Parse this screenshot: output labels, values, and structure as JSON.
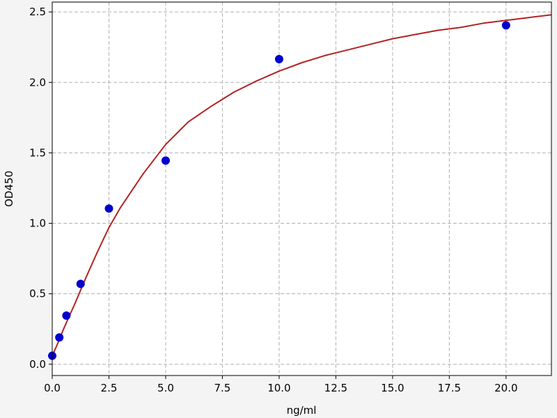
{
  "chart_data": {
    "type": "scatter",
    "xlabel": "ng/ml",
    "ylabel": "OD450",
    "xlim": [
      0,
      22
    ],
    "ylim": [
      -0.08,
      2.57
    ],
    "grid": true,
    "x_ticks": [
      0.0,
      2.5,
      5.0,
      7.5,
      10.0,
      12.5,
      15.0,
      17.5,
      20.0
    ],
    "x_tick_labels": [
      "0.0",
      "2.5",
      "5.0",
      "7.5",
      "10.0",
      "12.5",
      "15.0",
      "17.5",
      "20.0"
    ],
    "y_ticks": [
      0.0,
      0.5,
      1.0,
      1.5,
      2.0,
      2.5
    ],
    "y_tick_labels": [
      "0.0",
      "0.5",
      "1.0",
      "1.5",
      "2.0",
      "2.5"
    ],
    "series": [
      {
        "type": "scatter",
        "color": "#0000cc",
        "x": [
          0,
          0.3125,
          0.625,
          1.25,
          2.5,
          5.0,
          10.0,
          20.0
        ],
        "y": [
          0.06,
          0.19,
          0.345,
          0.57,
          1.105,
          1.445,
          2.165,
          2.405
        ]
      },
      {
        "type": "line",
        "color": "#b22222",
        "curve": "fitted standard curve",
        "x": [
          0,
          0.25,
          0.5,
          0.75,
          1,
          1.5,
          2,
          2.5,
          3,
          4,
          5,
          6,
          7,
          7.5,
          8,
          9,
          10,
          11,
          12,
          12.5,
          13,
          14,
          15,
          16,
          17,
          17.5,
          18,
          19,
          20,
          21,
          22
        ],
        "y": [
          0.06,
          0.15,
          0.25,
          0.34,
          0.43,
          0.62,
          0.8,
          0.97,
          1.11,
          1.35,
          1.56,
          1.72,
          1.83,
          1.88,
          1.93,
          2.01,
          2.08,
          2.14,
          2.19,
          2.21,
          2.23,
          2.27,
          2.31,
          2.34,
          2.37,
          2.38,
          2.39,
          2.42,
          2.44,
          2.46,
          2.48
        ]
      }
    ]
  }
}
